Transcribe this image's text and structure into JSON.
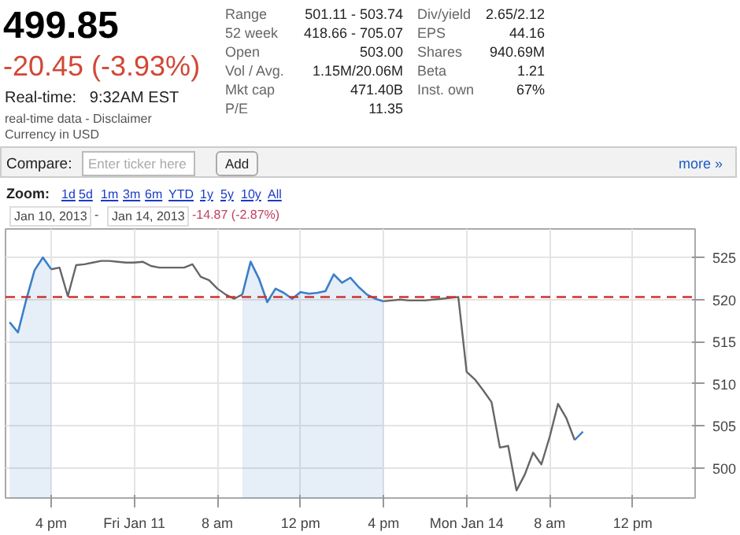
{
  "chart_data": {
    "type": "line",
    "annotations": [
      "499.85",
      "-20.45 (-3.93%)",
      "Real-time:   9:32AM EST",
      "real-time data - Disclaimer",
      "Currency in USD",
      "Range",
      "501.11 - 503.74",
      "52 week",
      "418.66 - 705.07",
      "Open",
      "503.00",
      "Vol / Avg.",
      "1.15M/20.06M",
      "Mkt cap",
      "471.40B",
      "P/E",
      "11.35",
      "Div/yield",
      "2.65/2.12",
      "EPS",
      "44.16",
      "Shares",
      "940.69M",
      "Beta",
      "1.21",
      "Inst. own",
      "67%",
      "Compare:",
      "Enter ticker here",
      "Add",
      "more »",
      "Zoom:",
      "1d",
      "5d",
      "1m",
      "3m",
      "6m",
      "YTD",
      "1y",
      "5y",
      "10y",
      "All",
      "Jan 10, 2013",
      "-",
      "Jan 14, 2013",
      "-14.87 (-2.87%)"
    ],
    "categories": [
      null,
      null,
      null,
      null,
      null,
      "4 pm",
      null,
      null,
      null,
      null,
      null,
      null,
      null,
      null,
      null,
      "Fri Jan 11",
      null,
      null,
      null,
      null,
      null,
      null,
      null,
      null,
      null,
      "8 am",
      null,
      null,
      null,
      null,
      null,
      null,
      null,
      null,
      null,
      "12 pm",
      null,
      null,
      null,
      null,
      null,
      null,
      null,
      null,
      null,
      "4 pm",
      null,
      null,
      null,
      null,
      null,
      null,
      null,
      null,
      null,
      "Mon Jan 14",
      null,
      null,
      null,
      null,
      null,
      null,
      null,
      null,
      null,
      "8 am",
      null,
      null,
      null,
      null,
      null,
      null,
      null,
      null,
      null,
      "12 pm",
      null,
      null,
      null,
      null,
      null,
      null,
      null
    ],
    "series": [
      {
        "type": "area",
        "color": "#3a7fc8",
        "values": [
          517.3,
          516.1,
          520.0,
          523.5,
          525.0,
          523.6,
          null,
          null,
          null,
          null,
          null,
          null,
          null,
          null,
          null,
          null,
          null,
          null,
          null,
          null,
          null,
          null,
          null,
          null,
          null,
          null,
          null,
          null,
          520.6,
          524.5,
          522.5,
          519.7,
          521.3,
          520.8,
          520.1,
          520.9,
          520.7,
          520.8,
          521.0,
          523.0,
          522.0,
          522.6,
          521.5,
          520.6,
          520.1,
          519.8,
          null,
          null,
          null,
          null,
          null,
          null,
          null,
          null,
          null,
          null,
          null,
          null,
          null,
          null,
          null,
          null,
          null,
          null,
          null,
          null,
          null,
          null,
          null,
          null,
          null,
          null,
          null,
          null,
          null,
          null,
          null,
          null,
          null,
          null,
          null,
          null,
          null
        ]
      },
      {
        "color": "#3a7fc8",
        "values": [
          null,
          null,
          null,
          null,
          null,
          null,
          null,
          null,
          null,
          null,
          null,
          null,
          null,
          null,
          null,
          null,
          null,
          null,
          null,
          null,
          null,
          null,
          null,
          null,
          null,
          null,
          null,
          null,
          null,
          null,
          null,
          null,
          null,
          null,
          null,
          null,
          null,
          null,
          null,
          null,
          null,
          null,
          null,
          null,
          null,
          null,
          null,
          null,
          null,
          null,
          null,
          null,
          null,
          null,
          null,
          null,
          null,
          null,
          null,
          null,
          null,
          null,
          null,
          null,
          null,
          null,
          null,
          null,
          503.3,
          504.3,
          null,
          null,
          null,
          null,
          null,
          null,
          null,
          null,
          null,
          null,
          null,
          null,
          null
        ]
      },
      {
        "color": "#666666",
        "values": [
          null,
          null,
          null,
          null,
          null,
          523.6,
          523.8,
          520.4,
          524.1,
          524.2,
          524.4,
          524.6,
          524.6,
          524.5,
          524.4,
          524.4,
          524.5,
          524.0,
          523.8,
          523.8,
          523.8,
          523.8,
          524.2,
          522.7,
          522.3,
          521.3,
          520.6,
          520.1,
          520.6,
          null,
          null,
          null,
          null,
          null,
          null,
          null,
          null,
          null,
          null,
          null,
          null,
          null,
          null,
          null,
          null,
          519.8,
          519.9,
          520.0,
          519.9,
          519.9,
          519.9,
          520.0,
          520.1,
          520.2,
          520.3,
          511.4,
          510.5,
          509.2,
          507.8,
          502.4,
          502.6,
          497.3,
          499.2,
          501.8,
          500.4,
          503.7,
          507.6,
          505.9,
          503.3,
          null,
          null,
          null,
          null,
          null,
          null,
          null,
          null,
          null,
          null,
          null,
          null,
          null,
          null
        ]
      }
    ],
    "ref_lines": [
      {
        "axis": "y",
        "value": 520.3,
        "color": "#cc3333",
        "line_style": "dashed"
      }
    ],
    "ylim": [
      496.4,
      528.4
    ],
    "yticks": [
      500,
      505,
      510,
      515,
      520,
      525
    ],
    "grid": true
  }
}
